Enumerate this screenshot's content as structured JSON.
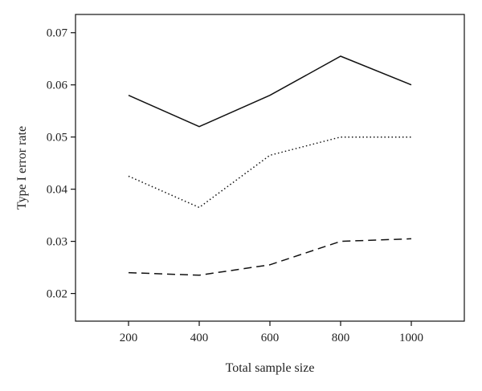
{
  "chart_data": {
    "type": "line",
    "xlabel": "Total sample size",
    "ylabel": "Type I error rate",
    "x": [
      200,
      400,
      600,
      800,
      1000
    ],
    "xlim": [
      50,
      1150
    ],
    "ylim": [
      0.0147,
      0.0735
    ],
    "xticks": [
      "200",
      "400",
      "600",
      "800",
      "1000"
    ],
    "yticks": [
      "0.02",
      "0.03",
      "0.04",
      "0.05",
      "0.06",
      "0.07"
    ],
    "grid": false,
    "legend": "none",
    "series": [
      {
        "style": "solid",
        "color": "#111111",
        "values": [
          0.058,
          0.052,
          0.058,
          0.0655,
          0.06
        ]
      },
      {
        "style": "dotted",
        "color": "#111111",
        "values": [
          0.0425,
          0.0365,
          0.0465,
          0.05,
          0.05
        ]
      },
      {
        "style": "dashed",
        "color": "#111111",
        "values": [
          0.024,
          0.0235,
          0.0255,
          0.03,
          0.0305
        ]
      }
    ]
  }
}
